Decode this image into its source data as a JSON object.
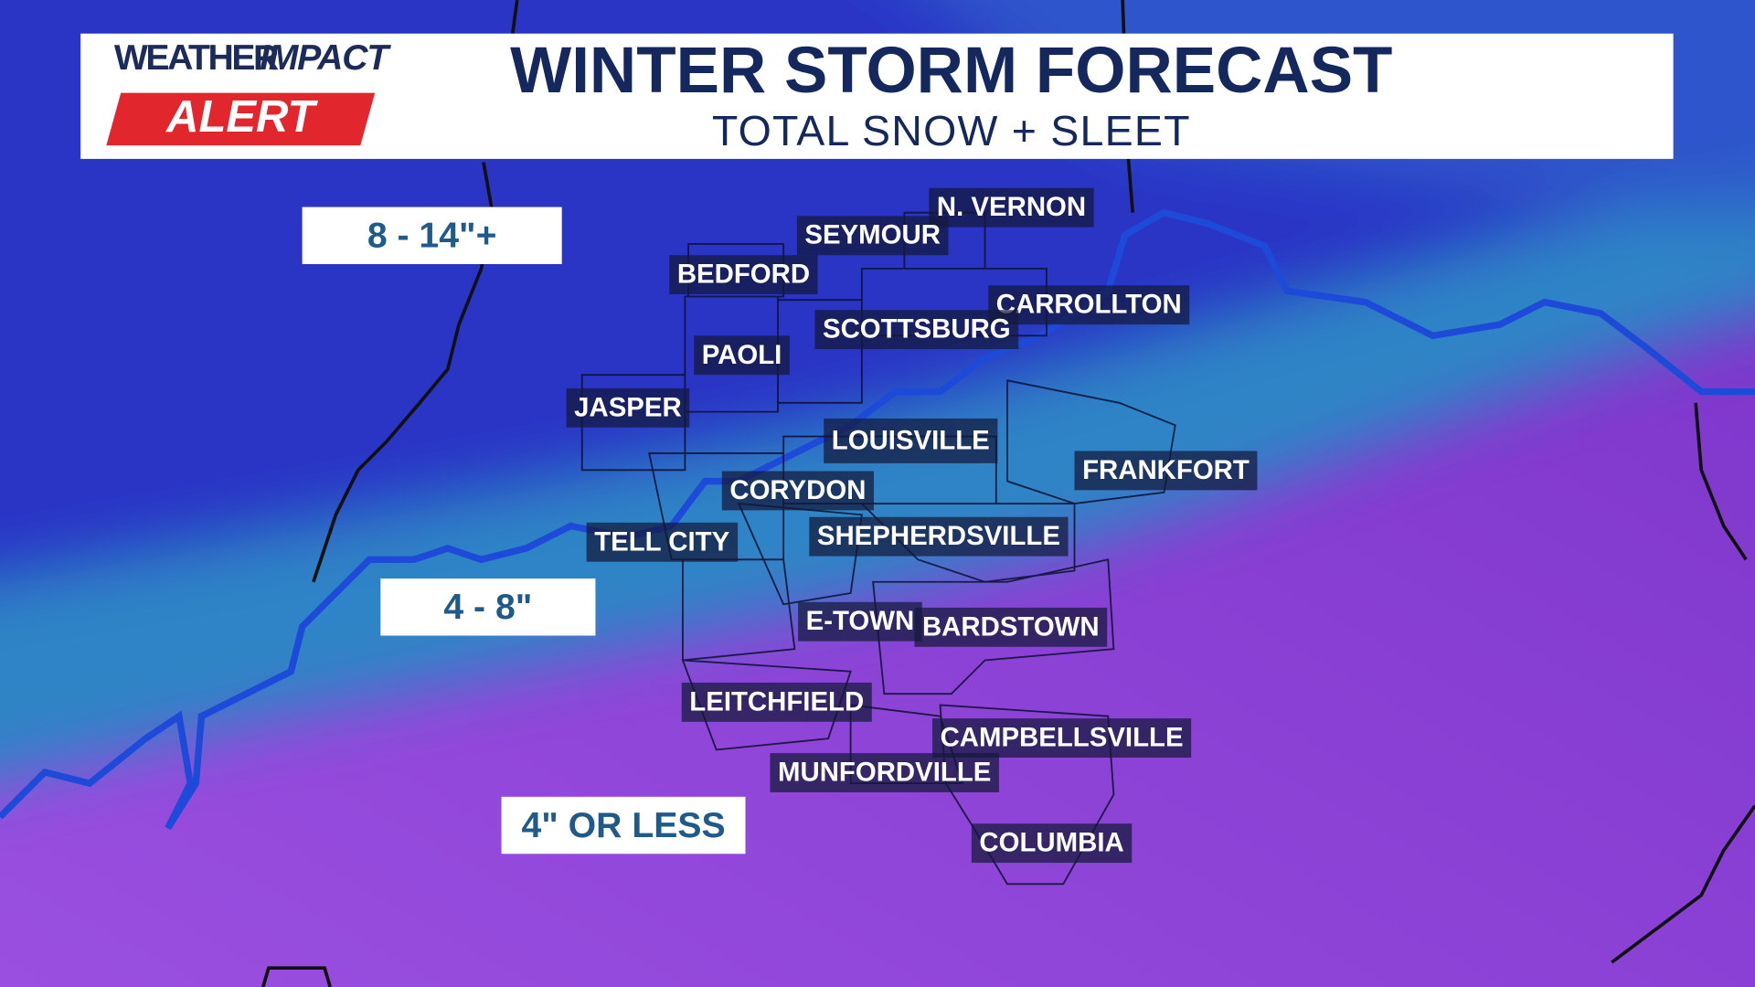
{
  "header": {
    "logo_weather": "WEATHER",
    "logo_impact": "IMPACT",
    "logo_alert": "ALERT",
    "title": "WINTER STORM FORECAST",
    "subtitle": "TOTAL SNOW + SLEET"
  },
  "zones": [
    "8 - 14\"+",
    "4 - 8\"",
    "4\" OR LESS"
  ],
  "cities": [
    "N. VERNON",
    "SEYMOUR",
    "BEDFORD",
    "CARROLLTON",
    "SCOTTSBURG",
    "PAOLI",
    "JASPER",
    "LOUISVILLE",
    "FRANKFORT",
    "CORYDON",
    "TELL CITY",
    "SHEPHERDSVILLE",
    "E-TOWN",
    "BARDSTOWN",
    "LEITCHFIELD",
    "CAMPBELLSVILLE",
    "MUNFORDVILLE",
    "COLUMBIA"
  ]
}
